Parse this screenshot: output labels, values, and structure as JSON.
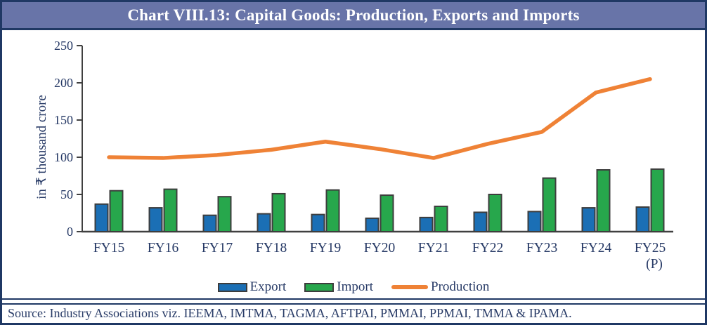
{
  "title": "Chart VIII.13: Capital Goods: Production, Exports and Imports",
  "source": "Source: Industry Associations viz. IEEMA, IMTMA, TAGMA, AFTPAI, PMMAI, PPMAI, TMMA & IPAMA.",
  "colors": {
    "frame_border": "#1f3864",
    "title_bg": "#6874a8",
    "title_text": "#ffffff",
    "label_text": "#273a66",
    "axis": "#404040",
    "bar_outline": "#3d3d3d",
    "export_blue": "#1b6fb5",
    "import_green": "#27a74c",
    "production_orange": "#ef8236"
  },
  "chart_data": {
    "type": "combo-bar-line",
    "categories": [
      "FY15",
      "FY16",
      "FY17",
      "FY18",
      "FY19",
      "FY20",
      "FY21",
      "FY22",
      "FY23",
      "FY24",
      "FY25"
    ],
    "category_note": {
      "index": 10,
      "text": "(P)"
    },
    "series": [
      {
        "name": "Export",
        "type": "bar",
        "color": "#1b6fb5",
        "values": [
          37,
          32,
          22,
          24,
          23,
          18,
          19,
          26,
          27,
          32,
          33
        ]
      },
      {
        "name": "Import",
        "type": "bar",
        "color": "#27a74c",
        "values": [
          55,
          57,
          47,
          51,
          56,
          49,
          34,
          50,
          72,
          83,
          84
        ]
      },
      {
        "name": "Production",
        "type": "line",
        "color": "#ef8236",
        "values": [
          100,
          99,
          103,
          110,
          121,
          111,
          99,
          118,
          134,
          187,
          205
        ]
      }
    ],
    "ylabel": "in ₹ thousand crore",
    "ylim": [
      0,
      250
    ],
    "yticks": [
      0,
      50,
      100,
      150,
      200,
      250
    ],
    "grid": false,
    "legend_position": "bottom"
  }
}
